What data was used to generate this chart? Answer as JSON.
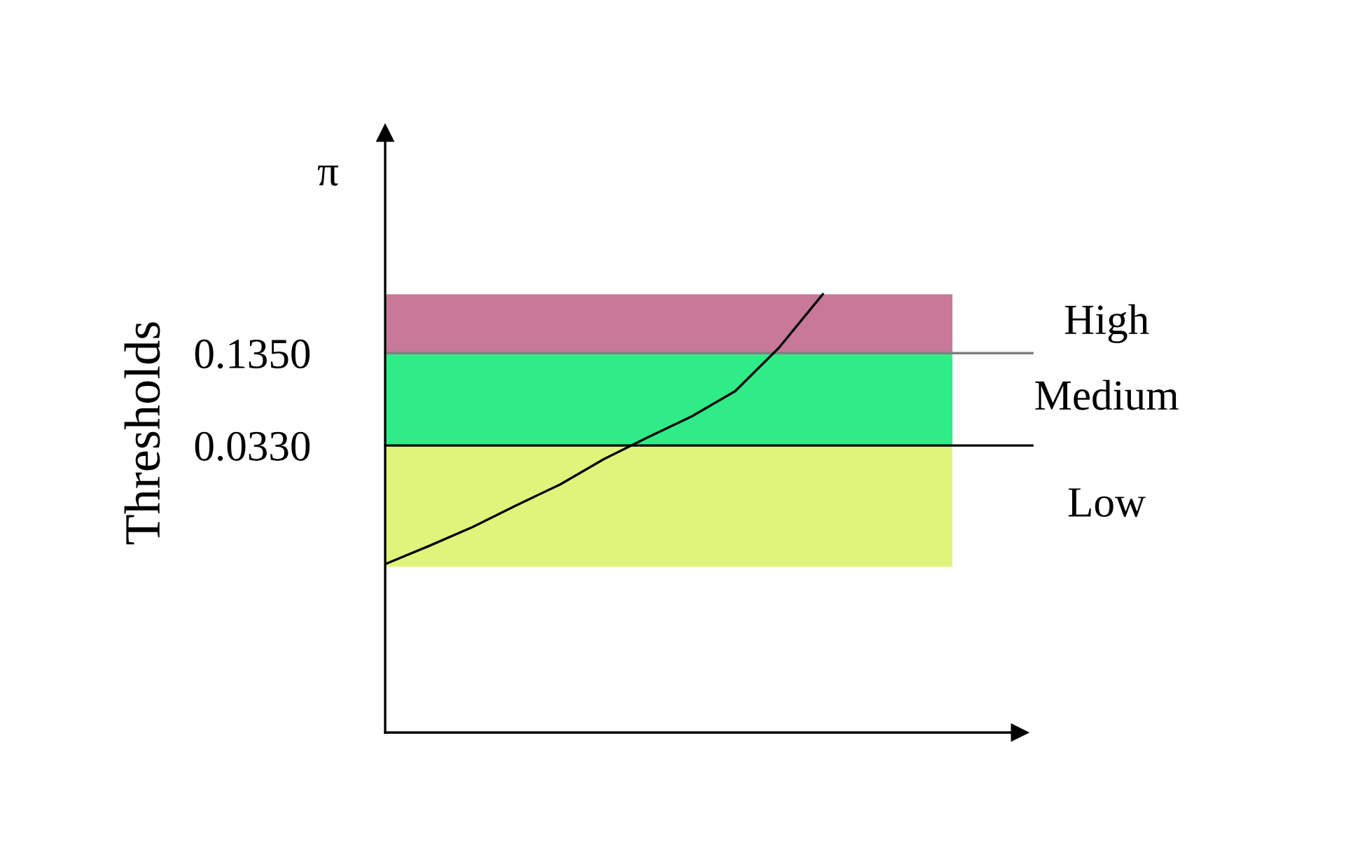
{
  "chart_data": {
    "type": "line",
    "ylabel": "Thresholds",
    "annotations": [
      "π"
    ],
    "categories": [
      null,
      null,
      null,
      null,
      null,
      null,
      null,
      null,
      null,
      null,
      null,
      null,
      null,
      null,
      null
    ],
    "series": [
      {
        "color": "#000000",
        "values": [
          -0.098,
          -0.078,
          -0.057,
          -0.033,
          -0.01,
          0.018,
          0.042,
          0.065,
          0.093,
          0.141,
          0.2,
          null,
          null,
          null,
          null
        ]
      }
    ],
    "ylim": [
      -0.284,
      0.378
    ],
    "yticks": [
      {
        "value": 0.033,
        "label": "0.0330"
      },
      {
        "value": 0.135,
        "label": "0.1350"
      }
    ],
    "tick_labels": "y",
    "bands": [
      {
        "axis": "y",
        "from": 0.135,
        "to": 0.2,
        "label": "High",
        "color": "#c87898"
      },
      {
        "axis": "y",
        "from": 0.033,
        "to": 0.135,
        "label": "Medium",
        "color": "#30ec88"
      },
      {
        "axis": "y",
        "from": -0.101,
        "to": 0.033,
        "label": "Low",
        "color": "#e0f47c"
      }
    ],
    "ref_lines": [
      {
        "axis": "y",
        "value": 0.135,
        "color": "#808080"
      },
      {
        "axis": "y",
        "value": 0.033,
        "color": "#000000"
      }
    ],
    "grid": false,
    "legend": false,
    "marker": "none",
    "line_style": "solid"
  }
}
